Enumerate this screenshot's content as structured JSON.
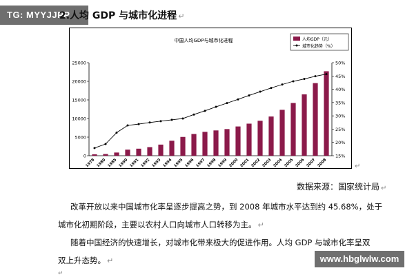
{
  "watermarks": {
    "top": "TG: MYYJJPP",
    "bottom": "www.hbglwlw.com"
  },
  "document": {
    "heading": "2.人均 GDP 与城市化进程",
    "paragraph_mark": "↵",
    "source": "数据来源：国家统计局",
    "paragraphs": [
      "改革开放以来中国城市化率呈逐步提高之势，到 2008 年城市水平达到约 45.68%，处于",
      "城市化初期阶段，主要以农村人口向城市人口转移为主。",
      "随着中国经济的快速增长，对城市化带来极大的促进作用。人均 GDP 与城市化率呈双",
      "双上升态势。"
    ]
  },
  "chart_data": {
    "type": "bar",
    "title": "中国人均GDP与城市化进程",
    "categories": [
      "1978",
      "1980",
      "1985",
      "1990",
      "1991",
      "1992",
      "1993",
      "1994",
      "1995",
      "1996",
      "1997",
      "1998",
      "1999",
      "2000",
      "2001",
      "2002",
      "2003",
      "2004",
      "2005",
      "2006",
      "2007",
      "2008"
    ],
    "series": [
      {
        "name": "人均GDP（元）",
        "kind": "bar",
        "axis": "left",
        "color": "#8b1a4a",
        "values": [
          380,
          460,
          860,
          1640,
          1890,
          2310,
          2990,
          4040,
          5050,
          5850,
          6420,
          6800,
          7160,
          7860,
          8620,
          9400,
          10540,
          12340,
          14180,
          16500,
          19520,
          22700
        ]
      },
      {
        "name": "城市化趋势（%）",
        "kind": "line",
        "axis": "right",
        "color": "#000000",
        "values": [
          17.9,
          19.4,
          23.7,
          26.4,
          26.9,
          27.5,
          28.0,
          28.5,
          29.0,
          30.5,
          31.9,
          33.4,
          34.8,
          36.2,
          37.7,
          39.1,
          40.5,
          41.8,
          43.0,
          43.9,
          44.9,
          45.7
        ]
      }
    ],
    "ylim_left": [
      0,
      25000
    ],
    "yticks_left": [
      "0",
      "5000",
      "10000",
      "15000",
      "20000",
      "25000"
    ],
    "ylim_right": [
      15,
      50
    ],
    "yticks_right": [
      "15%",
      "20%",
      "25%",
      "30%",
      "35%",
      "40%",
      "45%",
      "50%"
    ],
    "grid": false,
    "legend": "top-right"
  }
}
